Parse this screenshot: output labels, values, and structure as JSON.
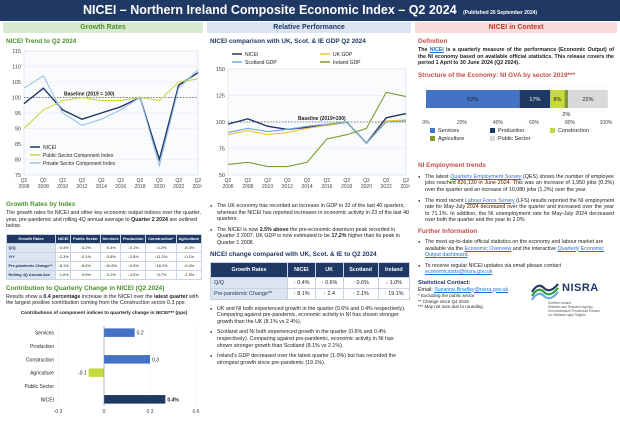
{
  "header": {
    "title": "NICEI – Northern Ireland Composite Economic Index – Q2 2024",
    "published": "(Published 26 September 2024)"
  },
  "sections": {
    "growth": "Growth Rates",
    "relative": "Relative Performance",
    "context": "NICEI in Context"
  },
  "trend_chart": {
    "title": "NICEI Trend to Q2 2024",
    "baseline_label": "Baseline (2019 = 100)",
    "legend": [
      "NICEI",
      "Public Sector Component Index",
      "Private Sector Component Index"
    ],
    "colors": {
      "nicei": "#1f3864",
      "public": "#c6d93c",
      "private": "#9dc3e6"
    }
  },
  "comparison_chart": {
    "title": "NICEI comparison with UK, Scot. & IE GDP Q2 2024",
    "baseline_label": "Baseline (2019=100)",
    "legend": [
      "NICEI",
      "UK GDP",
      "Scotland GDP",
      "Ireland GDP"
    ],
    "colors": {
      "nicei": "#1f3864",
      "uk": "#f1c232",
      "scotland": "#6fa8dc",
      "ireland": "#7f9a2f"
    }
  },
  "growth_by_index": {
    "title": "Growth Rates by Index",
    "intro_1": "The growth rates for NICEI and other key economic output indices over the quarter, year, pre-pandemic and rolling 4Q annual average to ",
    "intro_bold": "Quarter 2 2024",
    "intro_2": " are outlined below.",
    "columns": [
      "Growth Rates",
      "NICEI",
      "Public Sector",
      "Services",
      "Production",
      "Construction*",
      "Agriculture"
    ],
    "rows": [
      {
        "label": "Q/Q",
        "cells": [
          {
            "v": "0.4%",
            "d": "up"
          },
          {
            "v": "0.2%",
            "d": "down"
          },
          {
            "v": "0.4%",
            "d": "up"
          },
          {
            "v": "0.1%",
            "d": "down"
          },
          {
            "v": "4.2%",
            "d": "up"
          },
          {
            "v": "8.3%",
            "d": "down"
          }
        ]
      },
      {
        "label": "Y/Y",
        "cells": [
          {
            "v": "2.3%",
            "d": "up"
          },
          {
            "v": "0.1%",
            "d": "up"
          },
          {
            "v": "3.8%",
            "d": "up"
          },
          {
            "v": "3.5%",
            "d": "down"
          },
          {
            "v": "11.2%",
            "d": "up"
          },
          {
            "v": "0.1%",
            "d": "down"
          }
        ]
      },
      {
        "label": "Pre-pandemic Change**",
        "cells": [
          {
            "v": "8.1%",
            "d": "up"
          },
          {
            "v": "6.0%",
            "d": "up"
          },
          {
            "v": "10.6%",
            "d": "up"
          },
          {
            "v": "0.9%",
            "d": "down"
          },
          {
            "v": "18.2%",
            "d": "up"
          },
          {
            "v": "0.4%",
            "d": "down"
          }
        ]
      },
      {
        "label": "Rolling 4Q Annual Ave",
        "cells": [
          {
            "v": "1.6%",
            "d": "up"
          },
          {
            "v": "0.9%",
            "d": "up"
          },
          {
            "v": "3.2%",
            "d": "up"
          },
          {
            "v": "4.0%",
            "d": "down"
          },
          {
            "v": "5.7%",
            "d": "up"
          },
          {
            "v": "1.9%",
            "d": "down"
          }
        ]
      }
    ]
  },
  "contribution": {
    "title": "Contribution to Quarterly Change in NICEI (Q2 2024)",
    "text_1": "Results show a ",
    "text_bold_1": "0.4 percentage",
    "text_2": " increase in the NICEI over the ",
    "text_bold_2": "latest quarter",
    "text_3": " with the largest positive contribution coming from the Construction sector 0.3 pps:",
    "chart_title": "Contributions of component indices to quarterly change in NICEI*** (pps)"
  },
  "chart_data": [
    {
      "type": "line",
      "title": "NICEI Trend to Q2 2024",
      "x": [
        "Q2 2006",
        "Q2 2008",
        "Q2 2010",
        "Q2 2012",
        "Q2 2014",
        "Q2 2016",
        "Q2 2018",
        "Q2 2020",
        "Q2 2022",
        "Q2 2024"
      ],
      "ylim": [
        75,
        115
      ],
      "yticks": [
        75,
        80,
        85,
        90,
        95,
        100,
        105,
        110,
        115
      ],
      "series": [
        {
          "name": "NICEI",
          "values": [
            98,
            103,
            96,
            93,
            95,
            97,
            100,
            80,
            104,
            108
          ]
        },
        {
          "name": "Public Sector Component Index",
          "values": [
            90,
            96,
            99,
            100,
            99,
            99,
            100,
            99,
            105,
            106
          ]
        },
        {
          "name": "Private Sector Component Index",
          "values": [
            103,
            107,
            95,
            91,
            93,
            96,
            100,
            78,
            103,
            109
          ]
        }
      ]
    },
    {
      "type": "line",
      "title": "NICEI comparison with UK, Scot. & IE GDP Q2 2024",
      "x": [
        "Q2 2006",
        "Q2 2008",
        "Q2 2010",
        "Q2 2012",
        "Q2 2014",
        "Q2 2016",
        "Q2 2018",
        "Q2 2020",
        "Q2 2022",
        "Q2 2024"
      ],
      "ylim": [
        50,
        150
      ],
      "yticks": [
        50,
        75,
        100,
        125,
        150
      ],
      "series": [
        {
          "name": "NICEI",
          "values": [
            98,
            103,
            96,
            93,
            95,
            97,
            100,
            80,
            104,
            108
          ]
        },
        {
          "name": "UK GDP",
          "values": [
            88,
            92,
            88,
            90,
            94,
            97,
            100,
            80,
            101,
            102
          ]
        },
        {
          "name": "Scotland GDP",
          "values": [
            90,
            94,
            91,
            93,
            96,
            98,
            100,
            80,
            100,
            101
          ]
        },
        {
          "name": "Ireland GDP",
          "values": [
            60,
            62,
            58,
            58,
            62,
            84,
            88,
            94,
            128,
            124
          ]
        }
      ]
    },
    {
      "type": "bar",
      "title": "Contributions of component indices to quarterly change in NICEI*** (pps)",
      "categories": [
        "Services",
        "Production",
        "Construction",
        "Agriculture",
        "Public Sector",
        "NICEI"
      ],
      "values": [
        0.2,
        0.0,
        0.3,
        -0.1,
        0.0,
        0.4
      ],
      "labels": [
        "0.2",
        "",
        "0.3",
        "-0.1",
        "",
        "0.4%"
      ],
      "xlim": [
        -0.3,
        0.6
      ],
      "xticks": [
        "-0.3",
        "0",
        "0.3",
        "0.6"
      ]
    },
    {
      "type": "bar",
      "title": "Structure of the Economy: NI GVA by sector 2019***",
      "categories": [
        "Services",
        "Production",
        "Construction",
        "Agriculture",
        "Public Sector"
      ],
      "values": [
        52,
        17,
        8,
        2,
        22
      ],
      "labels": [
        "52%",
        "17%",
        "8%",
        "2%",
        "22%"
      ],
      "xticks": [
        "0%",
        "20%",
        "40%",
        "60%",
        "80%",
        "100%"
      ],
      "colors": [
        "#4472c4",
        "#1f3864",
        "#c6d93c",
        "#7f9a2f",
        "#d9d9d9"
      ]
    }
  ],
  "relative": {
    "bullets_top": [
      {
        "text": "The UK economy has recorded an increase in GDP in 32 of the last 40 quarters, whereas the NICEI has reported increases in economic activity in 23 of the last 40 quarters."
      },
      {
        "text_1": "The NICEI is now ",
        "bold_1": "2.5% above",
        "text_2": " the pre-economic downturn peak recorded in Quarter 3 2007. UK GDP is now estimated to be ",
        "bold_2": "17.2%",
        "text_3": " higher than its peak in Quarter 1 2008."
      }
    ],
    "table_title": "NICEI change compared with UK, Scot. & IE to Q2 2024",
    "table_columns": [
      "Growth Rates",
      "NICEI",
      "UK",
      "Scotland",
      "Ireland"
    ],
    "table_rows": [
      {
        "label": "Q/Q",
        "cells": [
          {
            "v": "0.4%",
            "d": "up"
          },
          {
            "v": "0.6%",
            "d": "up"
          },
          {
            "v": "0.6%",
            "d": "up"
          },
          {
            "v": "1.0%",
            "d": "down"
          }
        ]
      },
      {
        "label": "Pre-pandemic Change**",
        "cells": [
          {
            "v": "8.1%",
            "d": "up"
          },
          {
            "v": "2.4",
            "d": "up"
          },
          {
            "v": "2.1%",
            "d": "up"
          },
          {
            "v": "19.1%",
            "d": "up"
          }
        ]
      }
    ],
    "bullets_bottom": [
      "UK and NI both experienced growth in the quarter (0.6% and 0.4% respectively). Comparing against pre-pandemic, economic activity in NI has shown stronger growth than the UK (8.1% vs 2.4%).",
      "Scotland and NI both experienced growth in the quarter (0.6% and 0.4% respectively). Comparing against pre-pandemic, economic activity in NI has shown stronger growth than Scotland (8.1% vs 2.1%).",
      "Ireland's GDP decreased over the latest quarter (1.0%) but has recorded the strongest growth since pre-pandemic (19.1%)."
    ]
  },
  "context": {
    "definition_title": "Definition",
    "definition_1": "The ",
    "definition_link": "NICEI",
    "definition_2": " is a quarterly measure of the performance (Economic Output) of the NI economy based on available official statistics. This release covers the period 1 April to 30 June 2024 (Q2 2024).",
    "structure_title": "Structure of the Economy: NI GVA by sector 2019***",
    "legend": [
      "Services",
      "Production",
      "Construction",
      "Agriculture",
      "Public Sector"
    ],
    "employment_title": "NI Employment trends",
    "emp_1a": "The latest ",
    "emp_1link": "Quarterly Employment Survey",
    "emp_1b": " (QES) shows the number of employee jobs reached 826,130 in June 2024. This was an increase of 1,950 jobs (0.2%) over the quarter and an increase of 10,080 jobs (1.2%) over the year.",
    "emp_2a": "The most recent ",
    "emp_2link": "Labour Force Survey",
    "emp_2b": " (LFS) results reported the NI employment rate for May-July 2024 decreased over the quarter and increased over the year to 71.1%. In addition, the NI unemployment rate for May-July 2024 decreased over both the quarter and the year to 2.0%",
    "info_title": "Further Information",
    "info_1a": "The most up-to-date official statistics on the economy and labour market are available via the ",
    "info_1link": "Economic Overview",
    "info_1b": " and the interactive ",
    "info_1link2": "Quarterly Economic Output dashboard",
    "info_1c": ".",
    "info_2a": "To receive regular NICEI updates via email please contact ",
    "info_2link": "economicstats@nisra.gov.uk",
    "contact_title": "Statistical Contact:",
    "contact_email_label": "Email: ",
    "contact_email": "Suzanne.Bradley@nisra.gov.uk",
    "note_1": "* Excluding the public sector",
    "note_2": "** Change since Q4 2019",
    "note_3": "*** May not sum due to rounding",
    "logo_text": "NISRA",
    "logo_sub_1": "Northern Ireland",
    "logo_sub_2": "Statistics and Research Agency",
    "logo_sub_3": "Gníomhaireacht Thuaisceart Éireann",
    "logo_sub_4": "um Staitisticí agus Taighde"
  }
}
